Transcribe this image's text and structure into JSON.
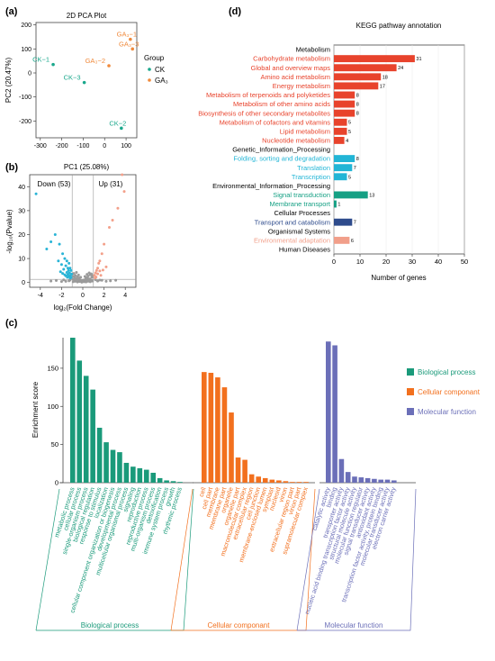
{
  "chart_data": [
    {
      "panel": "(a)",
      "type": "scatter",
      "title": "2D PCA Plot",
      "xlabel": "PC1 (25.08%)",
      "ylabel": "PC2 (20.47%)",
      "xlim": [
        -320,
        150
      ],
      "ylim": [
        -270,
        210
      ],
      "xticks": [
        -300,
        -200,
        -100,
        0,
        100
      ],
      "yticks": [
        -200,
        -100,
        0,
        100,
        200
      ],
      "legend": {
        "title": "Group",
        "entries": [
          {
            "name": "CK",
            "color": "#1aa88c"
          },
          {
            "name": "GA₃",
            "color": "#f08a3c"
          }
        ]
      },
      "points": [
        {
          "label": "CK−1",
          "group": "CK",
          "x": -240,
          "y": 35
        },
        {
          "label": "CK−3",
          "group": "CK",
          "x": -95,
          "y": -40
        },
        {
          "label": "CK−2",
          "group": "CK",
          "x": 78,
          "y": -230
        },
        {
          "label": "GA₃−1",
          "group": "GA₃",
          "x": 120,
          "y": 140
        },
        {
          "label": "GA₃−3",
          "group": "GA₃",
          "x": 130,
          "y": 100
        },
        {
          "label": "GA₃−2",
          "group": "GA₃",
          "x": 20,
          "y": 30
        }
      ]
    },
    {
      "panel": "(b)",
      "type": "scatter",
      "xlabel": "log₂(Fold Change)",
      "ylabel": "-log₁₀(Pvalue)",
      "xlim": [
        -5,
        5
      ],
      "ylim": [
        -2,
        45
      ],
      "xticks": [
        -4,
        -2,
        0,
        2,
        4
      ],
      "yticks": [
        0,
        10,
        20,
        30,
        40
      ],
      "annotations": [
        "Down (53)",
        "Up (31)"
      ],
      "threshold_x": [
        -1,
        1
      ],
      "threshold_y": 1.3,
      "down_points": [
        [
          -4.4,
          37
        ],
        [
          -3.4,
          14
        ],
        [
          -3.0,
          17
        ],
        [
          -2.6,
          20
        ],
        [
          -2.2,
          16
        ],
        [
          -1.9,
          12
        ],
        [
          -1.7,
          10
        ],
        [
          -1.6,
          7
        ],
        [
          -1.5,
          9
        ],
        [
          -1.4,
          6
        ],
        [
          -1.35,
          5
        ],
        [
          -1.3,
          8
        ],
        [
          -1.25,
          4
        ],
        [
          -1.2,
          6
        ],
        [
          -1.15,
          3
        ],
        [
          -1.1,
          5
        ],
        [
          -1.05,
          3.5
        ],
        [
          -1.5,
          4.2
        ],
        [
          -1.8,
          5.5
        ],
        [
          -2.0,
          7.5
        ],
        [
          -1.7,
          3.2
        ],
        [
          -1.3,
          2.6
        ],
        [
          -2.3,
          9
        ],
        [
          -1.45,
          2.2
        ],
        [
          -1.2,
          1.8
        ],
        [
          -1.1,
          2.1
        ],
        [
          -1.6,
          2.8
        ],
        [
          -2.1,
          4.5
        ],
        [
          -1.9,
          3.8
        ],
        [
          -1.4,
          3.3
        ]
      ],
      "up_points": [
        [
          3.7,
          45
        ],
        [
          3.9,
          38
        ],
        [
          3.3,
          31
        ],
        [
          2.8,
          26
        ],
        [
          2.5,
          23
        ],
        [
          2.0,
          16
        ],
        [
          1.8,
          12
        ],
        [
          1.6,
          9
        ],
        [
          1.5,
          8
        ],
        [
          1.4,
          6
        ],
        [
          1.3,
          5
        ],
        [
          1.2,
          4
        ],
        [
          1.1,
          3
        ],
        [
          1.4,
          3.6
        ],
        [
          1.6,
          4.8
        ],
        [
          2.2,
          6.5
        ],
        [
          1.9,
          5.2
        ],
        [
          1.25,
          2.3
        ],
        [
          1.15,
          1.9
        ],
        [
          1.7,
          3.0
        ]
      ],
      "ns_points": [
        [
          -0.9,
          0.3
        ],
        [
          -0.7,
          0.5
        ],
        [
          -0.5,
          0.2
        ],
        [
          -0.3,
          0.4
        ],
        [
          -0.1,
          0.1
        ],
        [
          0.1,
          0.3
        ],
        [
          0.3,
          0.2
        ],
        [
          0.5,
          0.5
        ],
        [
          0.7,
          0.3
        ],
        [
          0.9,
          0.6
        ],
        [
          -0.8,
          1.0
        ],
        [
          -0.6,
          1.2
        ],
        [
          -0.4,
          0.8
        ],
        [
          -0.2,
          0.6
        ],
        [
          0.0,
          0.4
        ],
        [
          0.2,
          0.9
        ],
        [
          0.4,
          1.1
        ],
        [
          0.6,
          0.7
        ],
        [
          0.8,
          1.0
        ],
        [
          -0.95,
          1.5
        ],
        [
          -0.75,
          2.0
        ],
        [
          -0.55,
          1.6
        ],
        [
          -0.35,
          1.3
        ],
        [
          -0.15,
          0.9
        ],
        [
          0.05,
          1.0
        ],
        [
          0.25,
          1.4
        ],
        [
          0.45,
          1.8
        ],
        [
          0.65,
          1.5
        ],
        [
          0.85,
          2.2
        ],
        [
          -0.9,
          2.6
        ],
        [
          -0.7,
          3.0
        ],
        [
          -0.5,
          2.4
        ],
        [
          -0.3,
          1.9
        ],
        [
          0.3,
          2.1
        ],
        [
          0.5,
          2.7
        ],
        [
          0.7,
          3.2
        ],
        [
          0.9,
          2.9
        ],
        [
          -0.85,
          3.8
        ],
        [
          -0.6,
          4.2
        ],
        [
          0.6,
          4.0
        ],
        [
          0.8,
          3.6
        ],
        [
          -0.4,
          3.1
        ],
        [
          0.4,
          3.4
        ],
        [
          -0.2,
          2.2
        ],
        [
          0.2,
          2.5
        ],
        [
          -1.6,
          0.5
        ],
        [
          -1.3,
          0.7
        ],
        [
          -2.0,
          0.4
        ],
        [
          1.4,
          0.6
        ],
        [
          1.8,
          0.9
        ],
        [
          2.2,
          0.5
        ],
        [
          -1.2,
          1.0
        ],
        [
          1.2,
          1.1
        ],
        [
          -2.5,
          0.8
        ],
        [
          2.6,
          0.7
        ],
        [
          -3.0,
          0.6
        ],
        [
          3.1,
          0.9
        ],
        [
          -1.8,
          1.1
        ],
        [
          1.6,
          1.0
        ]
      ]
    },
    {
      "panel": "(c)",
      "type": "bar",
      "ylabel": "Enrichment score",
      "ylim": [
        0,
        190
      ],
      "yticks": [
        0,
        50,
        100,
        150
      ],
      "legend": [
        {
          "name": "Biological process",
          "color": "#1a9a7a"
        },
        {
          "name": "Cellular componant",
          "color": "#f2701e"
        },
        {
          "name": "Molecular function",
          "color": "#6b6fb8"
        }
      ],
      "groups": [
        {
          "name": "Biological process",
          "color": "#1a9a7a",
          "categories": [
            "metabolic process",
            "cellular process",
            "single-organism process",
            "biological regulation",
            "response to stimulus",
            "localization",
            "cellular component organization or biogenesis",
            "developmental process",
            "multicellular organismal process",
            "signaling",
            "reproduction",
            "reproductive process",
            "multi-organism process",
            "detoxification",
            "immune system process",
            "growth",
            "rhythmic process"
          ],
          "values": [
            190,
            160,
            140,
            122,
            72,
            53,
            43,
            40,
            26,
            21,
            19,
            17,
            13,
            6,
            3,
            2,
            1
          ]
        },
        {
          "name": "Cellular componant",
          "color": "#f2701e",
          "categories": [
            "cell",
            "cell part",
            "membrane",
            "membrane part",
            "organelle",
            "organelle part",
            "macromolecular complex",
            "extracellular region",
            "cell junction",
            "membrane-enclosed lumen",
            "symplast",
            "nucleoid",
            "virion",
            "extracellular region part",
            "virion part",
            "supramolecular complex"
          ],
          "values": [
            145,
            144,
            138,
            125,
            92,
            33,
            30,
            11,
            8,
            6,
            4,
            3,
            2,
            1,
            1,
            1
          ]
        },
        {
          "name": "Molecular function",
          "color": "#6b6fb8",
          "categories": [
            "catalytic activity",
            "binding",
            "transporter activity",
            "nucleic acid binding transcription factor activity",
            "structural molecule activity",
            "molecular function regulator",
            "signal transducer activity",
            "antioxidant activity",
            "transcription factor activity, protein binding",
            "molecular transducer activity",
            "electron carrier activity"
          ],
          "values": [
            185,
            180,
            31,
            14,
            8,
            7,
            6,
            5,
            4,
            4,
            3
          ]
        }
      ]
    },
    {
      "panel": "(d)",
      "type": "bar",
      "title": "KEGG pathway annotation",
      "xlabel": "Number of genes",
      "xlim": [
        0,
        50
      ],
      "xticks": [
        0,
        10,
        20,
        30,
        40,
        50
      ],
      "rows": [
        {
          "label": "Metabolism",
          "header": true
        },
        {
          "label": "Carbohydrate metabolism",
          "value": 31,
          "color": "#e8432c"
        },
        {
          "label": "Global and overview maps",
          "value": 24,
          "color": "#e8432c"
        },
        {
          "label": "Amino acid metabolism",
          "value": 18,
          "color": "#e8432c"
        },
        {
          "label": "Energy metabolism",
          "value": 17,
          "color": "#e8432c"
        },
        {
          "label": "Metabolism of terpenoids and polyketides",
          "value": 8,
          "color": "#e8432c"
        },
        {
          "label": "Metabolism of other amino acids",
          "value": 8,
          "color": "#e8432c"
        },
        {
          "label": "Biosynthesis of other secondary metabolites",
          "value": 8,
          "color": "#e8432c"
        },
        {
          "label": "Metabolism of cofactors and vitamins",
          "value": 5,
          "color": "#e8432c"
        },
        {
          "label": "Lipid metabolism",
          "value": 5,
          "color": "#e8432c"
        },
        {
          "label": "Nucleotide metabolism",
          "value": 4,
          "color": "#e8432c"
        },
        {
          "label": "Genetic_Information_Processing",
          "header": true
        },
        {
          "label": "Folding, sorting and degradation",
          "value": 8,
          "color": "#22b5d6"
        },
        {
          "label": "Translation",
          "value": 7,
          "color": "#22b5d6"
        },
        {
          "label": "Transcription",
          "value": 5,
          "color": "#22b5d6"
        },
        {
          "label": "Environmental_Information_Processing",
          "header": true
        },
        {
          "label": "Signal transduction",
          "value": 13,
          "color": "#15a084"
        },
        {
          "label": "Membrane transport",
          "value": 1,
          "color": "#15a084"
        },
        {
          "label": "Cellular Processes",
          "header": true
        },
        {
          "label": "Transport and catabolism",
          "value": 7,
          "color": "#2e4b8c"
        },
        {
          "label": "Organismal Systems",
          "header": true
        },
        {
          "label": "Environmental adaptation",
          "value": 6,
          "color": "#f19f8a"
        },
        {
          "label": "Human Diseases",
          "header": true
        }
      ]
    }
  ]
}
